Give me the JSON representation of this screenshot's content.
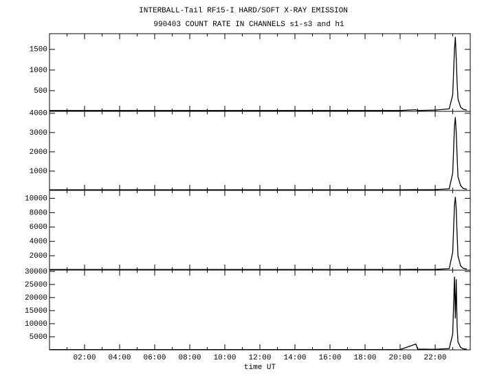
{
  "chart_data": [
    {
      "type": "line",
      "title": "INTERBALL-Tail RF15-I HARD/SOFT X-RAY EMISSION",
      "subtitle": "990403  COUNT RATE IN CHANNELS s1-s3 and h1",
      "x": [
        0,
        1,
        2,
        3,
        4,
        5,
        6,
        7,
        8,
        9,
        10,
        11,
        12,
        13,
        14,
        15,
        16,
        17,
        18,
        19,
        20,
        20.9,
        21,
        22,
        22.8,
        23,
        23.1,
        23.15,
        23.2,
        23.25,
        23.3,
        23.45,
        23.6,
        23.8
      ],
      "values": [
        20,
        20,
        20,
        20,
        20,
        20,
        20,
        20,
        20,
        20,
        20,
        20,
        20,
        20,
        20,
        20,
        20,
        20,
        20,
        20,
        20,
        40,
        20,
        30,
        60,
        400,
        1500,
        1800,
        1300,
        700,
        300,
        100,
        50,
        30
      ],
      "color": "#000000",
      "xlim": [
        0,
        24
      ],
      "ylim": [
        0,
        1880
      ],
      "yticks": [
        500,
        1000,
        1500
      ]
    },
    {
      "type": "line",
      "x": [
        0,
        1,
        2,
        3,
        4,
        5,
        6,
        7,
        8,
        9,
        10,
        11,
        12,
        13,
        14,
        15,
        16,
        17,
        18,
        19,
        20,
        20.9,
        21,
        22,
        22.8,
        23,
        23.1,
        23.15,
        23.2,
        23.25,
        23.3,
        23.45,
        23.6,
        23.8
      ],
      "values": [
        30,
        30,
        30,
        30,
        30,
        30,
        30,
        30,
        30,
        30,
        30,
        30,
        30,
        30,
        30,
        30,
        30,
        30,
        30,
        30,
        30,
        40,
        30,
        40,
        80,
        900,
        3300,
        3800,
        3000,
        1800,
        700,
        250,
        100,
        60
      ],
      "color": "#000000",
      "xlim": [
        0,
        24
      ],
      "ylim": [
        0,
        4100
      ],
      "yticks": [
        1000,
        2000,
        3000,
        4000
      ]
    },
    {
      "type": "line",
      "x": [
        0,
        1,
        2,
        3,
        4,
        5,
        6,
        7,
        8,
        9,
        10,
        11,
        12,
        13,
        14,
        15,
        16,
        17,
        18,
        19,
        20,
        20.9,
        21,
        22,
        22.8,
        23,
        23.1,
        23.15,
        23.2,
        23.25,
        23.3,
        23.45,
        23.6,
        23.8
      ],
      "values": [
        80,
        80,
        80,
        80,
        80,
        80,
        80,
        80,
        80,
        80,
        80,
        80,
        80,
        80,
        80,
        80,
        80,
        80,
        80,
        80,
        80,
        100,
        80,
        90,
        200,
        2500,
        9000,
        10200,
        8500,
        5000,
        2000,
        600,
        250,
        150
      ],
      "color": "#000000",
      "xlim": [
        0,
        24
      ],
      "ylim": [
        0,
        11100
      ],
      "yticks": [
        2000,
        4000,
        6000,
        8000,
        10000
      ]
    },
    {
      "type": "line",
      "xlabel": "time UT",
      "x": [
        0,
        1,
        2,
        3,
        4,
        5,
        6,
        7,
        8,
        9,
        10,
        11,
        12,
        13,
        14,
        15,
        16,
        17,
        18,
        19,
        20,
        20.9,
        21,
        22,
        22.8,
        23,
        23.1,
        23.15,
        23.2,
        23.25,
        23.3,
        23.45,
        23.6,
        23.8
      ],
      "values": [
        100,
        100,
        100,
        100,
        100,
        100,
        100,
        100,
        100,
        100,
        100,
        100,
        100,
        100,
        100,
        100,
        100,
        100,
        100,
        100,
        100,
        2200,
        300,
        200,
        500,
        6000,
        28000,
        12000,
        27000,
        9000,
        3000,
        900,
        400,
        250
      ],
      "color": "#000000",
      "xlim": [
        0,
        24
      ],
      "ylim": [
        0,
        30500
      ],
      "yticks": [
        5000,
        10000,
        15000,
        20000,
        25000,
        30000
      ],
      "xticks": [
        {
          "value": 2,
          "label": "02:00"
        },
        {
          "value": 4,
          "label": "04:00"
        },
        {
          "value": 6,
          "label": "06:00"
        },
        {
          "value": 8,
          "label": "08:00"
        },
        {
          "value": 10,
          "label": "10:00"
        },
        {
          "value": 12,
          "label": "12:00"
        },
        {
          "value": 14,
          "label": "14:00"
        },
        {
          "value": 16,
          "label": "16:00"
        },
        {
          "value": 18,
          "label": "18:00"
        },
        {
          "value": 20,
          "label": "20:00"
        },
        {
          "value": 22,
          "label": "22:00"
        }
      ]
    }
  ]
}
